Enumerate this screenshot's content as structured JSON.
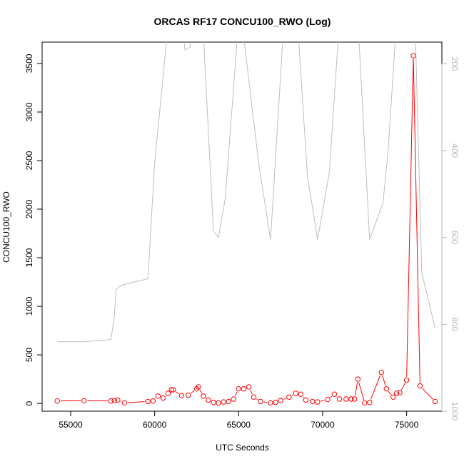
{
  "chart_data": {
    "type": "line",
    "title": "ORCAS RF17 CONCU100_RWO (Log)",
    "xlabel": "UTC Seconds",
    "ylabel": "CONCU100_RWO",
    "xlim": [
      53300,
      77100
    ],
    "ylim": [
      -80,
      3720
    ],
    "x_ticks": [
      55000,
      60000,
      65000,
      70000,
      75000
    ],
    "x_tick_labels": [
      "55000",
      "60000",
      "65000",
      "70000",
      "75000"
    ],
    "y_ticks": [
      0,
      500,
      1000,
      1500,
      2000,
      2500,
      3000,
      3500
    ],
    "y_tick_labels": [
      "0",
      "500",
      "1000",
      "1500",
      "2000",
      "2500",
      "3000",
      "3500"
    ],
    "y2_reversed": true,
    "y2lim": [
      1000,
      150
    ],
    "y2_ticks": [
      200,
      400,
      600,
      800,
      1000
    ],
    "y2_tick_labels": [
      "200",
      "400",
      "600",
      "800",
      "1000"
    ],
    "colors": {
      "primary_series": "#ff0000",
      "secondary_series": "#bebebe",
      "axes": "#000000",
      "secondary_axis": "#b8b8b8"
    },
    "series": [
      {
        "axis": "left",
        "marker": "open-circle",
        "x": [
          54200,
          55800,
          57400,
          57600,
          57800,
          58200,
          59600,
          59900,
          60200,
          60500,
          60800,
          61000,
          61100,
          61600,
          62000,
          62500,
          62600,
          62900,
          63200,
          63500,
          63800,
          64100,
          64400,
          64700,
          65000,
          65300,
          65600,
          65900,
          66300,
          66900,
          67200,
          67500,
          68000,
          68400,
          68700,
          69000,
          69400,
          69700,
          70300,
          70700,
          71000,
          71400,
          71700,
          71900,
          72100,
          72500,
          72800,
          73500,
          73800,
          74200,
          74400,
          74600,
          75000,
          75400,
          75800,
          76700
        ],
        "y": [
          25,
          28,
          25,
          30,
          35,
          5,
          20,
          25,
          75,
          55,
          105,
          140,
          140,
          80,
          85,
          150,
          170,
          75,
          35,
          10,
          5,
          15,
          20,
          45,
          150,
          150,
          170,
          65,
          20,
          5,
          10,
          30,
          65,
          105,
          95,
          35,
          20,
          15,
          40,
          95,
          45,
          45,
          45,
          45,
          250,
          5,
          10,
          320,
          150,
          65,
          105,
          110,
          240,
          3580,
          180,
          20
        ]
      },
      {
        "axis": "right",
        "x": [
          54200,
          55800,
          57400,
          57600,
          57700,
          58000,
          59600,
          60000,
          60700,
          60900,
          61000,
          61700,
          61800,
          62100,
          62200,
          62700,
          62900,
          63500,
          63800,
          64200,
          65000,
          65200,
          66200,
          66900,
          67700,
          68500,
          69100,
          69700,
          70400,
          71000,
          71700,
          72100,
          72800,
          73600,
          73900,
          74400,
          74700,
          75400,
          75500,
          75900,
          76700
        ],
        "y": [
          840,
          840,
          835,
          780,
          720,
          710,
          695,
          430,
          150,
          120,
          100,
          122,
          168,
          162,
          100,
          100,
          130,
          585,
          600,
          510,
          100,
          105,
          430,
          605,
          100,
          100,
          460,
          605,
          450,
          100,
          100,
          100,
          605,
          520,
          400,
          100,
          100,
          100,
          100,
          680,
          810
        ]
      }
    ]
  }
}
